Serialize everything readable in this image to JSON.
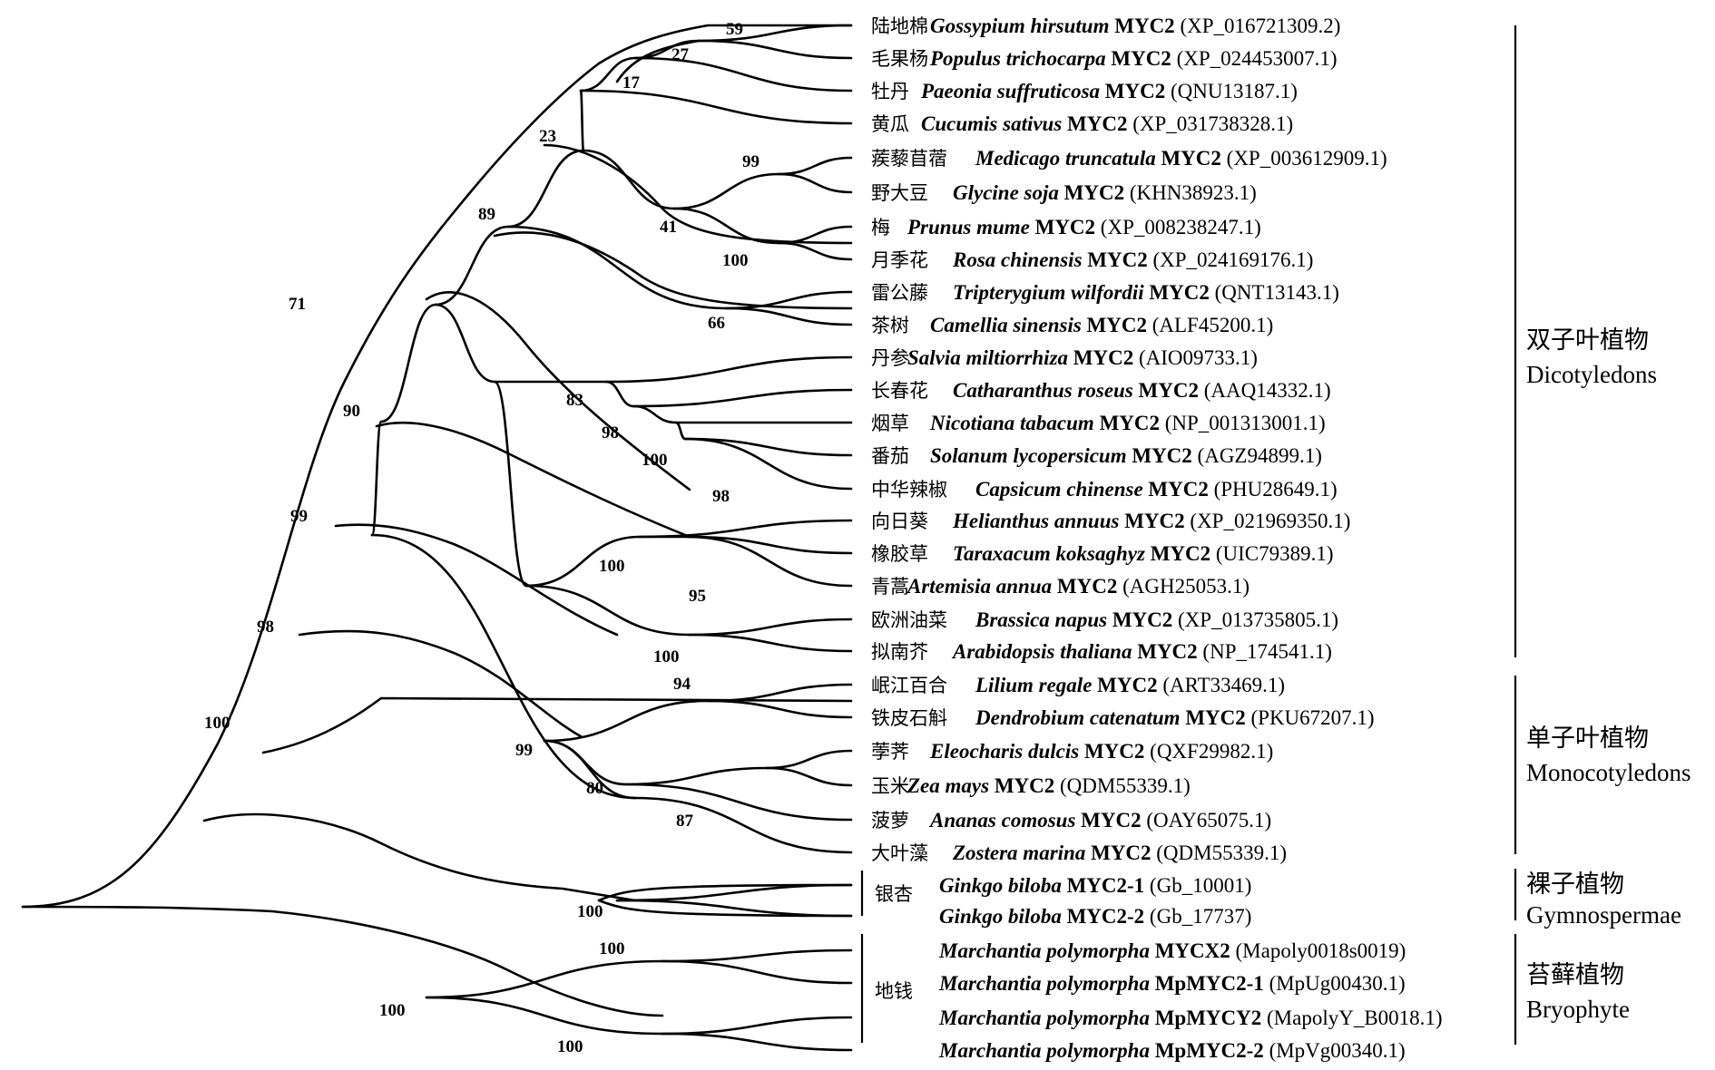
{
  "leaves": [
    {
      "cn": "陆地棉",
      "species": "Gossypium hirsutum",
      "gene": "MYC2",
      "acc": "(XP_016721309.2)"
    },
    {
      "cn": "毛果杨",
      "species": "Populus trichocarpa",
      "gene": "MYC2",
      "acc": "(XP_024453007.1)"
    },
    {
      "cn": "牡丹",
      "species": "Paeonia suffruticosa",
      "gene": "MYC2",
      "acc": "(QNU13187.1)"
    },
    {
      "cn": "黄瓜",
      "species": "Cucumis sativus",
      "gene": "MYC2",
      "acc": "(XP_031738328.1)"
    },
    {
      "cn": "蒺藜苜蓿",
      "species": "Medicago truncatula",
      "gene": "MYC2",
      "acc": "(XP_003612909.1)"
    },
    {
      "cn": "野大豆",
      "species": "Glycine soja",
      "gene": "MYC2",
      "acc": "(KHN38923.1)"
    },
    {
      "cn": "梅",
      "species": "Prunus mume",
      "gene": "MYC2",
      "acc": "(XP_008238247.1)"
    },
    {
      "cn": "月季花",
      "species": "Rosa chinensis",
      "gene": "MYC2",
      "acc": "(XP_024169176.1)"
    },
    {
      "cn": "雷公藤",
      "species": "Tripterygium wilfordii",
      "gene": "MYC2",
      "acc": "(QNT13143.1)"
    },
    {
      "cn": "茶树",
      "species": "Camellia sinensis",
      "gene": "MYC2",
      "acc": "(ALF45200.1)"
    },
    {
      "cn": "丹参",
      "species": "Salvia miltiorrhiza",
      "gene": "MYC2",
      "acc": "(AIO09733.1)"
    },
    {
      "cn": "长春花",
      "species": "Catharanthus roseus",
      "gene": "MYC2",
      "acc": "(AAQ14332.1)"
    },
    {
      "cn": "烟草",
      "species": "Nicotiana tabacum",
      "gene": "MYC2",
      "acc": "(NP_001313001.1)"
    },
    {
      "cn": "番茄",
      "species": "Solanum lycopersicum",
      "gene": "MYC2",
      "acc": "(AGZ94899.1)"
    },
    {
      "cn": "中华辣椒",
      "species": "Capsicum chinense",
      "gene": "MYC2",
      "acc": "(PHU28649.1)"
    },
    {
      "cn": "向日葵",
      "species": "Helianthus annuus",
      "gene": "MYC2",
      "acc": "(XP_021969350.1)"
    },
    {
      "cn": "橡胶草",
      "species": "Taraxacum koksaghyz",
      "gene": "MYC2",
      "acc": "(UIC79389.1)"
    },
    {
      "cn": "青蒿",
      "species": "Artemisia annua",
      "gene": "MYC2",
      "acc": "(AGH25053.1)"
    },
    {
      "cn": "欧洲油菜",
      "species": "Brassica napus",
      "gene": "MYC2",
      "acc": "(XP_013735805.1)"
    },
    {
      "cn": "拟南芥",
      "species": "Arabidopsis thaliana",
      "gene": "MYC2",
      "acc": "(NP_174541.1)"
    },
    {
      "cn": "岷江百合",
      "species": "Lilium regale",
      "gene": "MYC2",
      "acc": "(ART33469.1)"
    },
    {
      "cn": "铁皮石斛",
      "species": "Dendrobium catenatum",
      "gene": "MYC2",
      "acc": "(PKU67207.1)"
    },
    {
      "cn": "荸荠",
      "species": "Eleocharis dulcis",
      "gene": "MYC2",
      "acc": "(QXF29982.1)"
    },
    {
      "cn": "玉米",
      "species": "Zea mays",
      "gene": "MYC2",
      "acc": "(QDM55339.1)"
    },
    {
      "cn": "菠萝",
      "species": "Ananas comosus",
      "gene": "MYC2",
      "acc": "(OAY65075.1)"
    },
    {
      "cn": "大叶藻",
      "species": "Zostera marina",
      "gene": "MYC2",
      "acc": "(QDM55339.1)"
    },
    {
      "cn": "",
      "species": "Ginkgo biloba",
      "gene": "MYC2-1",
      "acc": "(Gb_10001)"
    },
    {
      "cn": "",
      "species": "Ginkgo biloba",
      "gene": "MYC2-2",
      "acc": "(Gb_17737)"
    },
    {
      "cn": "",
      "species": "Marchantia polymorpha",
      "gene": "MYCX2",
      "acc": "(Mapoly0018s0019)"
    },
    {
      "cn": "",
      "species": "Marchantia polymorpha",
      "gene": "MpMYC2-1",
      "acc": "(MpUg00430.1)"
    },
    {
      "cn": "",
      "species": "Marchantia polymorpha",
      "gene": "MpMYCY2",
      "acc": "(MapolyY_B0018.1)"
    },
    {
      "cn": "",
      "species": "Marchantia polymorpha",
      "gene": "MpMYC2-2",
      "acc": "(MpVg00340.1)"
    }
  ],
  "support_values": [
    "59",
    "27",
    "17",
    "23",
    "99",
    "41",
    "100",
    "89",
    "66",
    "71",
    "83",
    "98",
    "100",
    "98",
    "90",
    "100",
    "95",
    "99",
    "100",
    "98",
    "94",
    "99",
    "80",
    "87",
    "100",
    "100",
    "100",
    "100",
    "100"
  ],
  "sub_labels": {
    "ginkgo": "银杏",
    "marchantia": "地钱"
  },
  "groups": [
    {
      "cn": "双子叶植物",
      "en": "Dicotyledons"
    },
    {
      "cn": "单子叶植物",
      "en": "Monocotyledons"
    },
    {
      "cn": "裸子植物",
      "en": "Gymnospermae"
    },
    {
      "cn": "苔藓植物",
      "en": "Bryophyte"
    }
  ]
}
